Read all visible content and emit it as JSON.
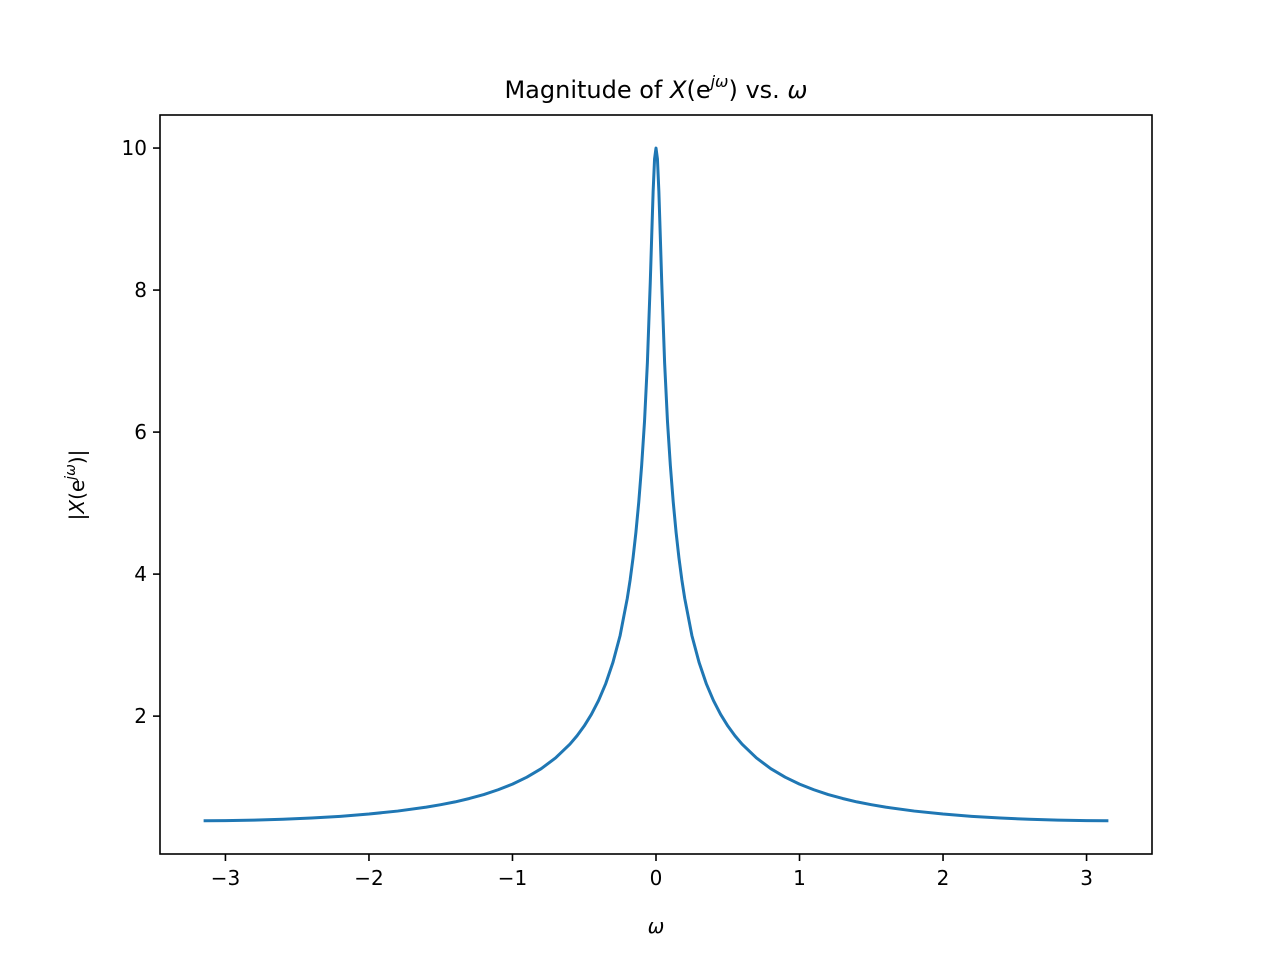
{
  "chart_data": {
    "type": "line",
    "title": {
      "prefix": "Magnitude of ",
      "func": "X",
      "open": "(e",
      "sup": "jω",
      "close": ")",
      "middle": " vs. ",
      "var": "ω"
    },
    "xlabel": "ω",
    "ylabel": {
      "bar1": "|",
      "func": "X",
      "open": "(e",
      "sup": "jω",
      "close": ")",
      "bar2": "|"
    },
    "xlim": [
      -3.456,
      3.456
    ],
    "ylim": [
      0.0583,
      10.4655
    ],
    "xticks": [
      -3,
      -2,
      -1,
      0,
      1,
      2,
      3
    ],
    "xtick_labels": [
      "−3",
      "−2",
      "−1",
      "0",
      "1",
      "2",
      "3"
    ],
    "yticks": [
      2,
      4,
      6,
      8,
      10
    ],
    "ytick_labels": [
      "2",
      "4",
      "6",
      "8",
      "10"
    ],
    "grid": false,
    "series": [
      {
        "color": "#1f77b4",
        "x": [
          -3.1416,
          -3.0,
          -2.8,
          -2.6,
          -2.4,
          -2.2,
          -2.0,
          -1.8,
          -1.6,
          -1.5,
          -1.4,
          -1.3,
          -1.2,
          -1.1,
          -1.0,
          -0.9,
          -0.8,
          -0.7,
          -0.6,
          -0.55,
          -0.5,
          -0.45,
          -0.4,
          -0.35,
          -0.3,
          -0.25,
          -0.2,
          -0.18,
          -0.16,
          -0.14,
          -0.12,
          -0.1,
          -0.08,
          -0.06,
          -0.05,
          -0.04,
          -0.03,
          -0.02,
          -0.01,
          0.0,
          0.01,
          0.02,
          0.03,
          0.04,
          0.05,
          0.06,
          0.08,
          0.1,
          0.12,
          0.14,
          0.16,
          0.18,
          0.2,
          0.25,
          0.3,
          0.35,
          0.4,
          0.45,
          0.5,
          0.55,
          0.6,
          0.7,
          0.8,
          0.9,
          1.0,
          1.1,
          1.2,
          1.3,
          1.4,
          1.5,
          1.6,
          1.8,
          2.0,
          2.2,
          2.4,
          2.6,
          2.8,
          3.0,
          3.1416
        ],
        "y": [
          0.526,
          0.528,
          0.535,
          0.547,
          0.565,
          0.589,
          0.621,
          0.663,
          0.718,
          0.753,
          0.792,
          0.84,
          0.896,
          0.963,
          1.042,
          1.14,
          1.26,
          1.411,
          1.605,
          1.724,
          1.862,
          2.025,
          2.221,
          2.459,
          2.757,
          3.136,
          3.66,
          3.921,
          4.227,
          4.588,
          5.017,
          5.53,
          6.15,
          6.978,
          7.542,
          8.104,
          8.752,
          9.388,
          9.847,
          10.0,
          9.847,
          9.388,
          8.752,
          8.104,
          7.542,
          6.978,
          6.15,
          5.53,
          5.017,
          4.588,
          4.227,
          3.921,
          3.66,
          3.136,
          2.757,
          2.459,
          2.221,
          2.025,
          1.862,
          1.724,
          1.605,
          1.411,
          1.26,
          1.14,
          1.042,
          0.963,
          0.896,
          0.84,
          0.792,
          0.753,
          0.718,
          0.663,
          0.621,
          0.589,
          0.565,
          0.547,
          0.535,
          0.528,
          0.526
        ]
      }
    ]
  }
}
